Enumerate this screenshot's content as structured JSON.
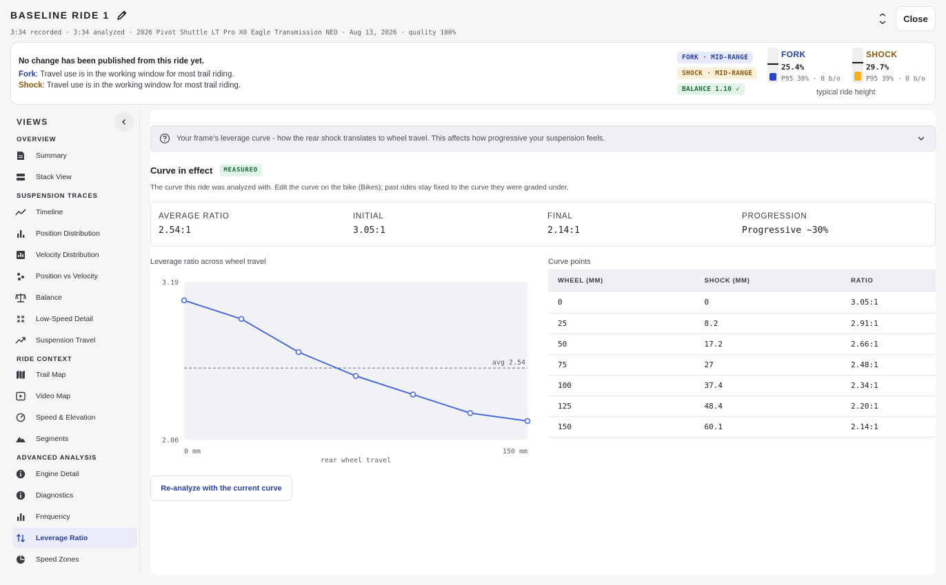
{
  "header": {
    "title": "BASELINE RIDE 1",
    "subtitle": "3:34 recorded · 3:34 analyzed · 2026 Pivot Shuttle LT Pro X0 Eagle Transmission NEO · Aug 13, 2026 · quality 100%",
    "close_label": "Close"
  },
  "status": {
    "headline": "No change has been published from this ride yet.",
    "fork_label": "Fork",
    "fork_text": ": Travel use is in the working window for most trail riding.",
    "shock_label": "Shock",
    "shock_text": ": Travel use is in the working window for most trail riding.",
    "chips": {
      "fork": "FORK · MID-RANGE",
      "shock": "SHOCK · MID-RANGE",
      "balance": "BALANCE 1.10 ✓"
    },
    "fork_gauge": {
      "label": "FORK",
      "value": "25.4%",
      "detail": "P95 38% · 0 b/o",
      "fill_fraction": 0.254,
      "color": "#2a43c8"
    },
    "shock_gauge": {
      "label": "SHOCK",
      "value": "29.7%",
      "detail": "P95 39% · 0 b/o",
      "fill_fraction": 0.297,
      "color": "#f0b020"
    },
    "caption": "typical ride height"
  },
  "sidebar": {
    "views_label": "VIEWS",
    "sections": {
      "overview": "OVERVIEW",
      "traces": "SUSPENSION TRACES",
      "context": "RIDE CONTEXT",
      "advanced": "ADVANCED ANALYSIS"
    },
    "items": {
      "summary": "Summary",
      "stack": "Stack View",
      "timeline": "Timeline",
      "posdist": "Position Distribution",
      "veldist": "Velocity Distribution",
      "posvel": "Position vs Velocity",
      "balance": "Balance",
      "lowspeed": "Low-Speed Detail",
      "travel": "Suspension Travel",
      "trailmap": "Trail Map",
      "videomap": "Video Map",
      "speedelev": "Speed & Elevation",
      "segments": "Segments",
      "engine": "Engine Detail",
      "diagnostics": "Diagnostics",
      "frequency": "Frequency",
      "leverage": "Leverage Ratio",
      "speedzones": "Speed Zones"
    }
  },
  "main": {
    "info_text": "Your frame's leverage curve - how the rear shock translates to wheel travel. This affects how progressive your suspension feels.",
    "curve_title": "Curve in effect",
    "curve_badge": "MEASURED",
    "curve_desc": "The curve this ride was analyzed with. Edit the curve on the bike (Bikes); past rides stay fixed to the curve they were graded under.",
    "stats": {
      "avg_label": "AVERAGE RATIO",
      "avg_value": "2.54:1",
      "initial_label": "INITIAL",
      "initial_value": "3.05:1",
      "final_label": "FINAL",
      "final_value": "2.14:1",
      "prog_label": "PROGRESSION",
      "prog_value": "Progressive ~30%"
    },
    "chart_title": "Leverage ratio across wheel travel",
    "table_title": "Curve points",
    "table_headers": [
      "WHEEL (MM)",
      "SHOCK (MM)",
      "RATIO"
    ],
    "table_rows": [
      [
        "0",
        "0",
        "3.05:1"
      ],
      [
        "25",
        "8.2",
        "2.91:1"
      ],
      [
        "50",
        "17.2",
        "2.66:1"
      ],
      [
        "75",
        "27",
        "2.48:1"
      ],
      [
        "100",
        "37.4",
        "2.34:1"
      ],
      [
        "125",
        "48.4",
        "2.20:1"
      ],
      [
        "150",
        "60.1",
        "2.14:1"
      ]
    ],
    "reanalyze_label": "Re-analyze with the current curve"
  },
  "chart_data": {
    "type": "line",
    "title": "Leverage ratio across wheel travel",
    "xlabel": "rear wheel travel",
    "ylabel": "",
    "x": [
      0,
      25,
      50,
      75,
      100,
      125,
      150
    ],
    "series": [
      {
        "values": [
          3.05,
          2.91,
          2.66,
          2.48,
          2.34,
          2.2,
          2.14
        ]
      }
    ],
    "xlim": [
      0,
      150
    ],
    "ylim": [
      2.0,
      3.19
    ],
    "x_tick_labels": [
      "0 mm",
      "150 mm"
    ],
    "y_tick_labels": [
      "3.19",
      "2.00"
    ],
    "reference_line": {
      "value": 2.54,
      "label": "avg 2.54"
    },
    "line_color": "#4a6ad8",
    "grid": false
  }
}
